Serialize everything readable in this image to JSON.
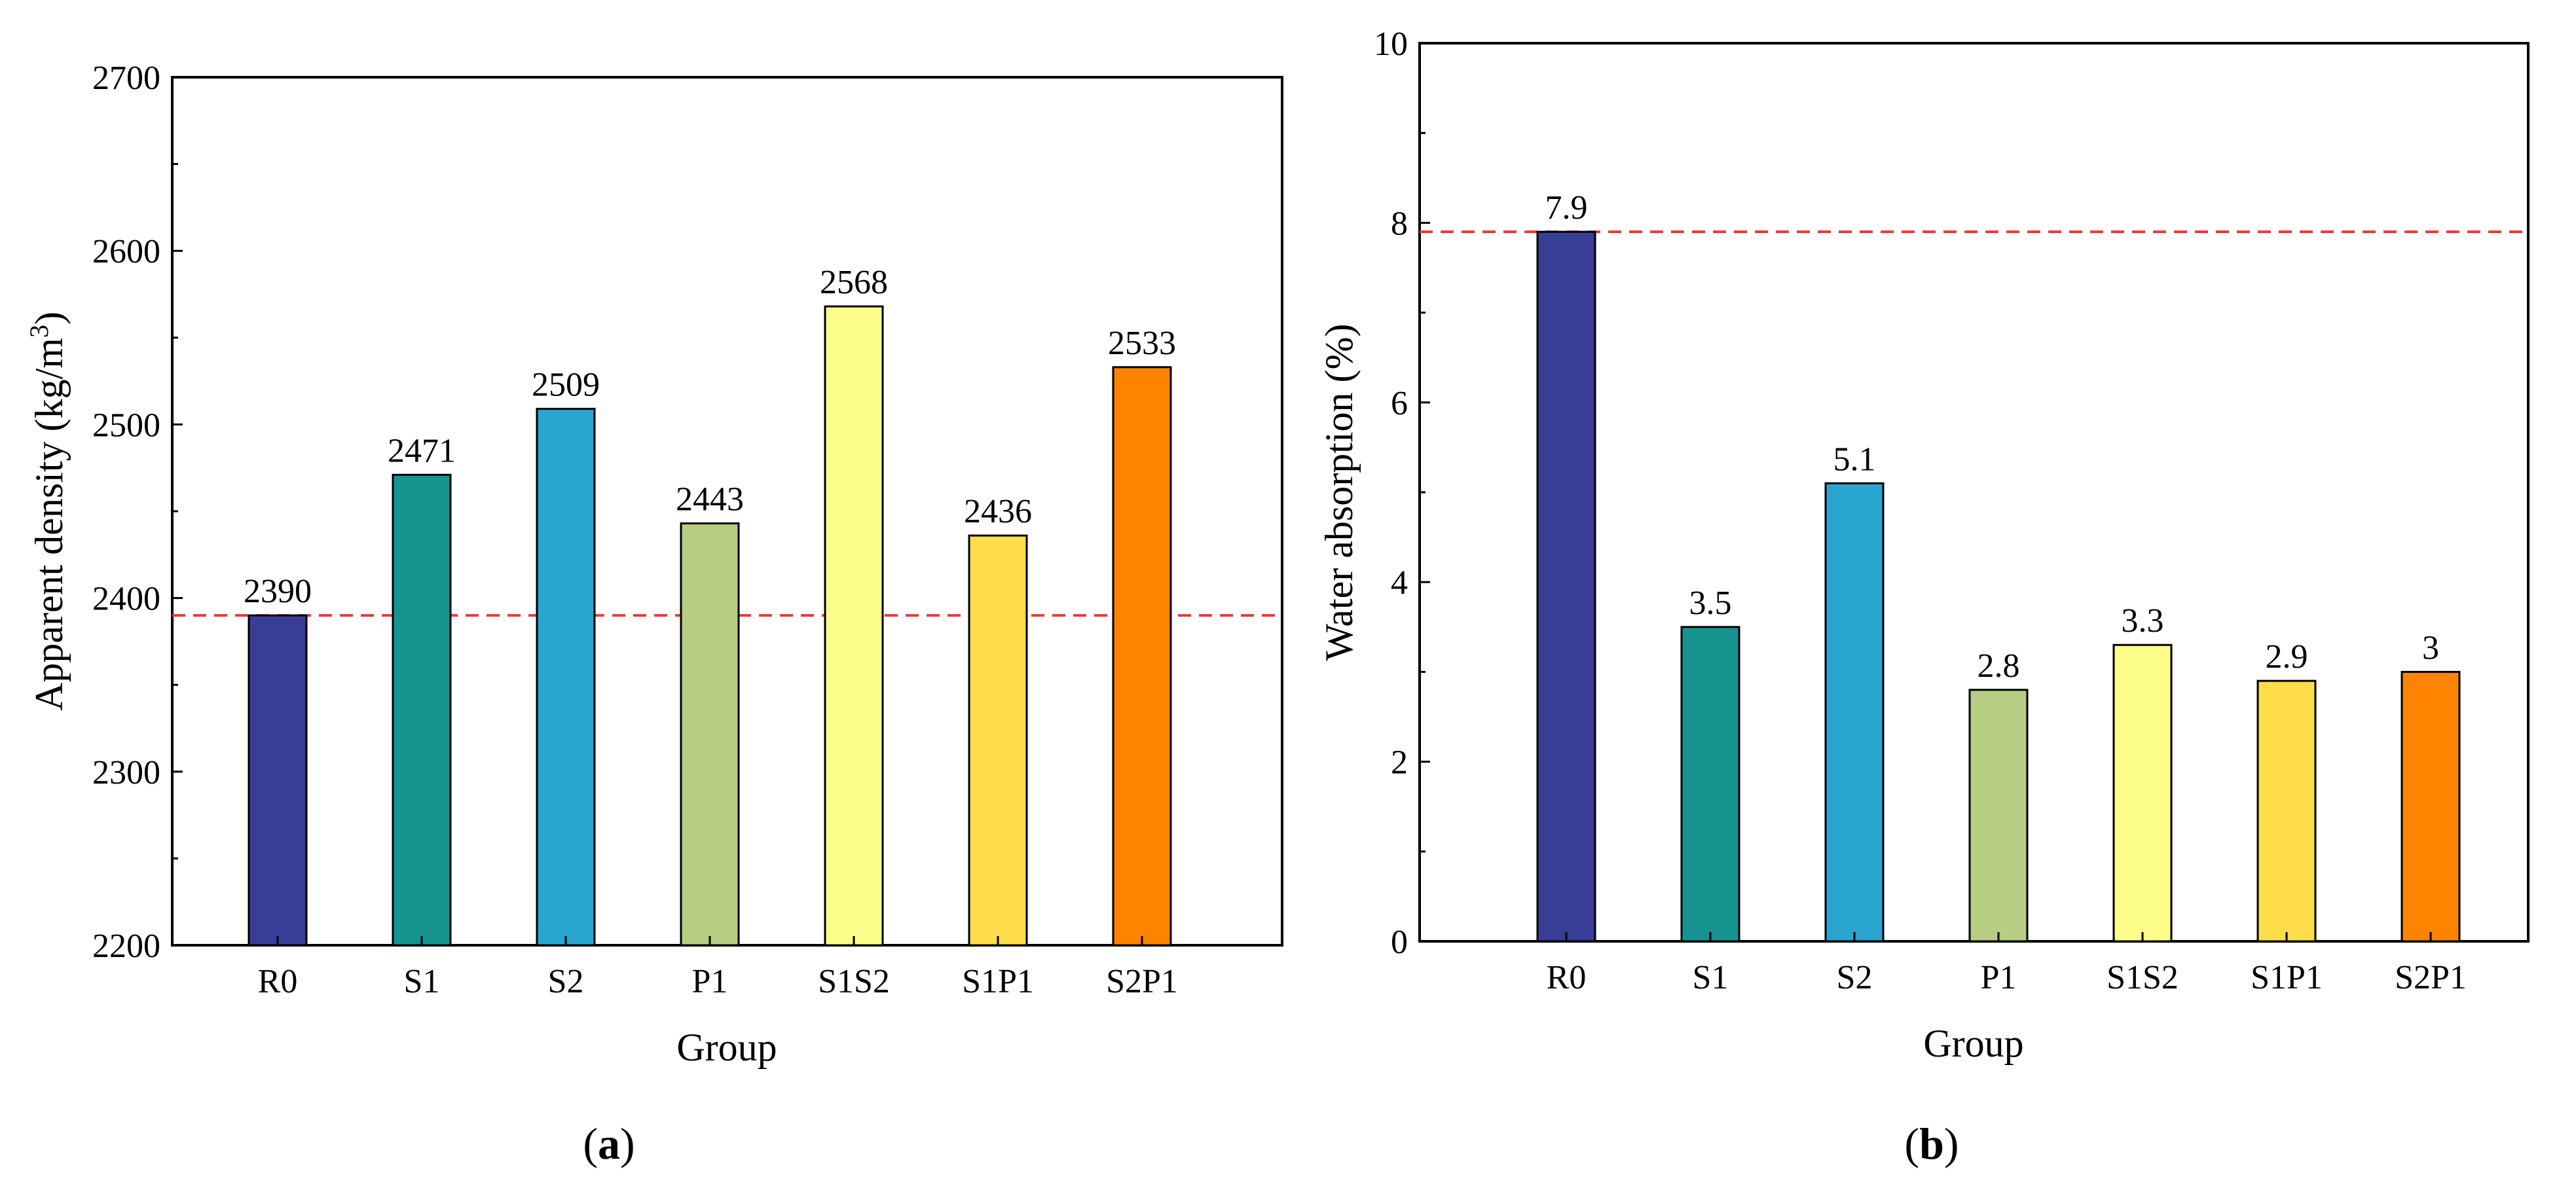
{
  "chart_data": [
    {
      "type": "bar",
      "panel_label": {
        "open": "(",
        "letter": "a",
        "close": ")"
      },
      "categories": [
        "R0",
        "S1",
        "S2",
        "P1",
        "S1S2",
        "S1P1",
        "S2P1"
      ],
      "values": [
        2390,
        2471,
        2509,
        2443,
        2568,
        2436,
        2533
      ],
      "value_labels": [
        "2390",
        "2471",
        "2509",
        "2443",
        "2568",
        "2436",
        "2533"
      ],
      "colors": [
        "#383D96",
        "#17948F",
        "#29A5CF",
        "#B6CD83",
        "#FDFD8A",
        "#FDDD4A",
        "#FD8300"
      ],
      "xlabel": "Group",
      "ylabel": "Apparent density (kg/m",
      "ylabel_sup": "3",
      "ylabel_end": ")",
      "ylim": [
        2200,
        2700
      ],
      "yticks": [
        2200,
        2300,
        2400,
        2500,
        2600,
        2700
      ],
      "ytick_labels": [
        "2200",
        "2300",
        "2400",
        "2500",
        "2600",
        "2700"
      ],
      "reference_line": {
        "value": 2390,
        "style": "dashed",
        "color": "#E8383D"
      },
      "grid": false
    },
    {
      "type": "bar",
      "panel_label": {
        "open": "(",
        "letter": "b",
        "close": ")"
      },
      "categories": [
        "R0",
        "S1",
        "S2",
        "P1",
        "S1S2",
        "S1P1",
        "S2P1"
      ],
      "values": [
        7.9,
        3.5,
        5.1,
        2.8,
        3.3,
        2.9,
        3
      ],
      "value_labels": [
        "7.9",
        "3.5",
        "5.1",
        "2.8",
        "3.3",
        "2.9",
        "3"
      ],
      "colors": [
        "#383D96",
        "#17948F",
        "#29A5CF",
        "#B6CD83",
        "#FDFD8A",
        "#FDDD4A",
        "#FD8300"
      ],
      "xlabel": "Group",
      "ylabel": "Water absorption (%)",
      "ylim": [
        0,
        10
      ],
      "yticks": [
        0,
        2,
        4,
        6,
        8,
        10
      ],
      "ytick_labels": [
        "0",
        "2",
        "4",
        "6",
        "8",
        "10"
      ],
      "reference_line": {
        "value": 7.9,
        "style": "dashed",
        "color": "#E8383D"
      },
      "grid": false
    }
  ]
}
